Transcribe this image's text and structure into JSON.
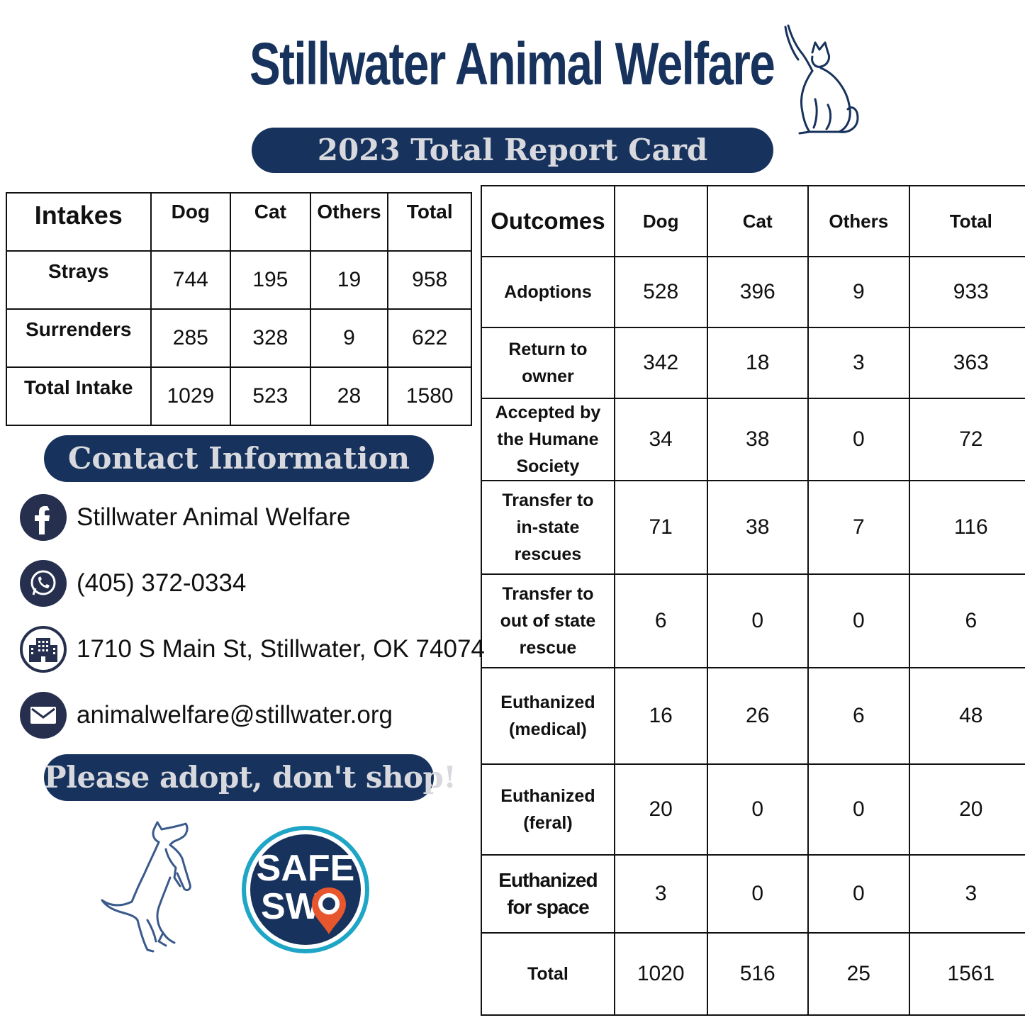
{
  "header": {
    "title": "Stillwater Animal Welfare",
    "report_label": "2023 Total Report Card"
  },
  "intakes": {
    "headers": [
      "Intakes",
      "Dog",
      "Cat",
      "Others",
      "Total"
    ],
    "rows": [
      {
        "label": "Strays",
        "dog": "744",
        "cat": "195",
        "others": "19",
        "total": "958"
      },
      {
        "label": "Surrenders",
        "dog": "285",
        "cat": "328",
        "others": "9",
        "total": "622"
      },
      {
        "label": "Total Intake",
        "dog": "1029",
        "cat": "523",
        "others": "28",
        "total": "1580"
      }
    ]
  },
  "outcomes": {
    "headers": [
      "Outcomes",
      "Dog",
      "Cat",
      "Others",
      "Total"
    ],
    "rows": [
      {
        "label": "Adoptions",
        "dog": "528",
        "cat": "396",
        "others": "9",
        "total": "933"
      },
      {
        "label": "Return to owner",
        "dog": "342",
        "cat": "18",
        "others": "3",
        "total": "363"
      },
      {
        "label": "Accepted by the Humane Society",
        "dog": "34",
        "cat": "38",
        "others": "0",
        "total": "72"
      },
      {
        "label": "Transfer to in-state rescues",
        "dog": "71",
        "cat": "38",
        "others": "7",
        "total": "116"
      },
      {
        "label": "Transfer to out of state rescue",
        "dog": "6",
        "cat": "0",
        "others": "0",
        "total": "6"
      },
      {
        "label": "Euthanized (medical)",
        "dog": "16",
        "cat": "26",
        "others": "6",
        "total": "48"
      },
      {
        "label": "Euthanized (feral)",
        "dog": "20",
        "cat": "0",
        "others": "0",
        "total": "20"
      },
      {
        "label": "Euthanized for space",
        "dog": "3",
        "cat": "0",
        "others": "0",
        "total": "3"
      },
      {
        "label": "Total",
        "dog": "1020",
        "cat": "516",
        "others": "25",
        "total": "1561"
      }
    ]
  },
  "contact": {
    "heading": "Contact Information",
    "facebook": "Stillwater Animal Welfare",
    "phone": "(405) 372-0334",
    "address": "1710 S Main St, Stillwater, OK 74074",
    "email": "animalwelfare@stillwater.org",
    "icons": [
      "facebook-icon",
      "whatsapp-icon",
      "building-icon",
      "mail-icon"
    ]
  },
  "slogan": "Please adopt, don't shop!",
  "badge": {
    "line1": "SAFE",
    "line2": "SW"
  },
  "colors": {
    "navy": "#17325c",
    "icon_bg": "#26304e",
    "badge_ring": "#1fa6c6",
    "badge_pin": "#e8562e"
  }
}
